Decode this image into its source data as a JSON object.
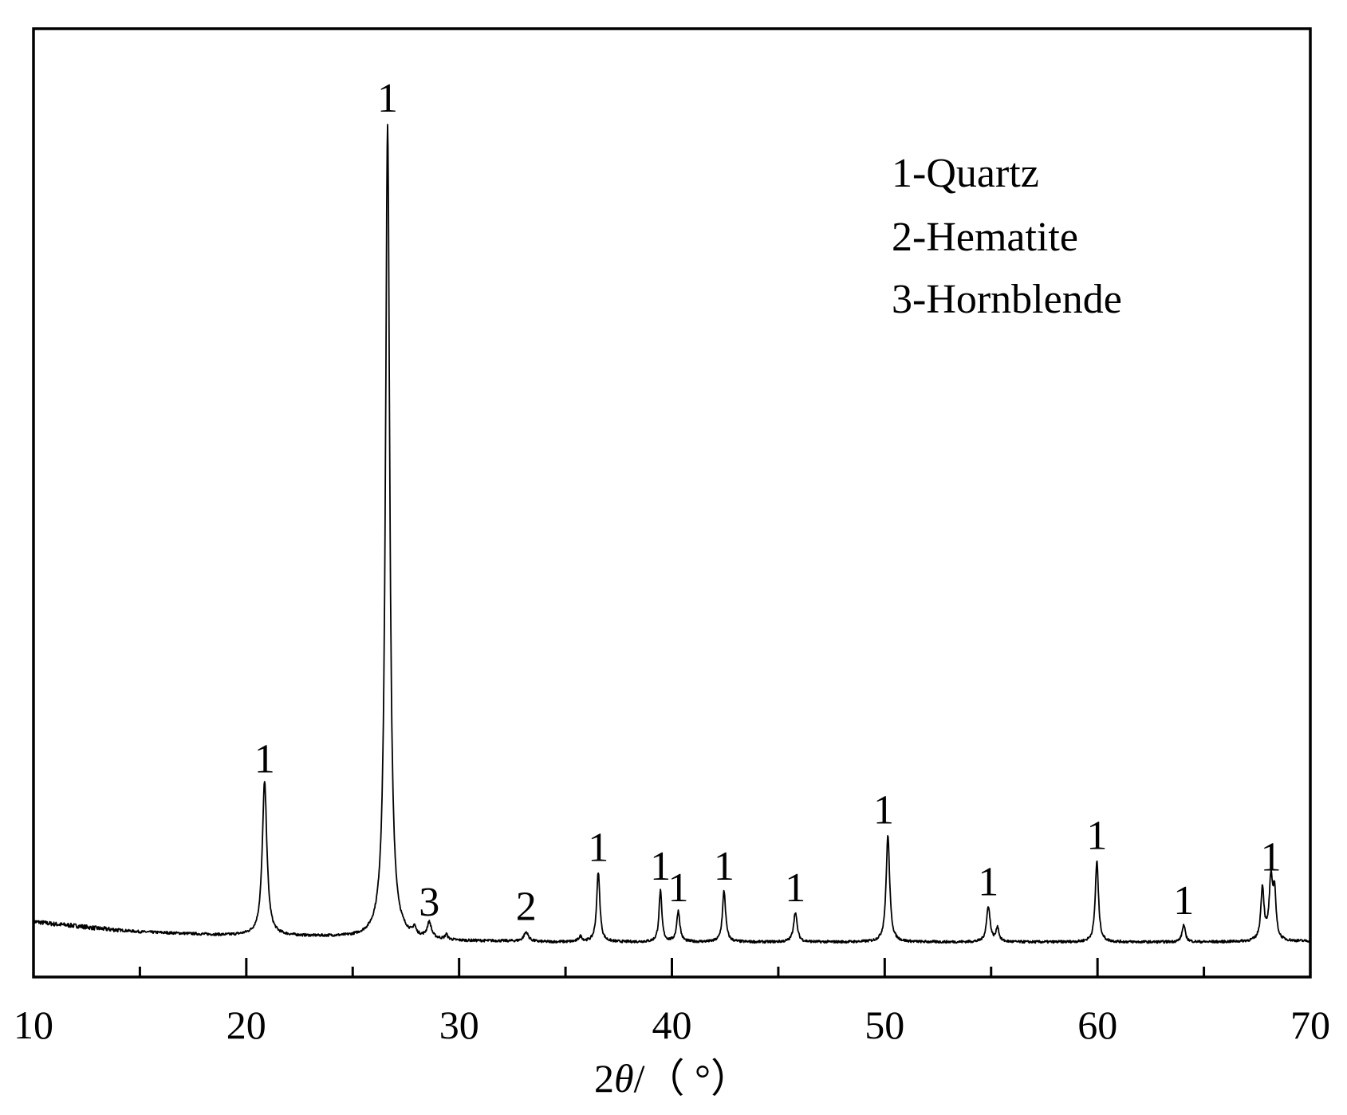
{
  "chart_data": {
    "type": "line",
    "title": "",
    "xlabel_prefix": "2",
    "xlabel_symbol": "θ",
    "xlabel_unit": "/（ °）",
    "ylabel": "",
    "xlim": [
      10,
      70
    ],
    "ylim": [
      0,
      1000
    ],
    "grid": false,
    "x_ticks": [
      10,
      20,
      30,
      40,
      50,
      60,
      70
    ],
    "x_minor_ticks": [
      15,
      25,
      35,
      45,
      55,
      65
    ],
    "legend_position": "top-right",
    "legend": [
      "1-Quartz",
      "2-Hematite",
      "3-Hornblende"
    ],
    "baseline": [
      [
        10,
        50
      ],
      [
        11,
        47
      ],
      [
        12,
        45
      ],
      [
        13,
        42
      ],
      [
        14,
        40
      ],
      [
        15,
        38
      ],
      [
        16,
        37
      ],
      [
        17,
        36
      ],
      [
        18,
        35
      ],
      [
        19,
        34
      ],
      [
        20,
        34
      ],
      [
        22,
        33
      ],
      [
        24,
        32
      ],
      [
        25,
        31
      ],
      [
        28,
        29
      ],
      [
        30,
        27
      ],
      [
        32,
        27
      ],
      [
        34,
        26
      ],
      [
        36,
        26
      ],
      [
        38,
        26
      ],
      [
        40,
        26
      ],
      [
        45,
        26
      ],
      [
        50,
        26
      ],
      [
        55,
        26
      ],
      [
        60,
        26
      ],
      [
        65,
        26
      ],
      [
        70,
        27
      ]
    ],
    "peaks": [
      {
        "x": 20.86,
        "height": 180,
        "width": 0.13
      },
      {
        "x": 26.64,
        "height": 955,
        "width": 0.12
      },
      {
        "x": 27.9,
        "height": 9,
        "width": 0.08
      },
      {
        "x": 28.6,
        "height": 18,
        "width": 0.12
      },
      {
        "x": 29.4,
        "height": 6,
        "width": 0.07
      },
      {
        "x": 33.15,
        "height": 11,
        "width": 0.13
      },
      {
        "x": 35.7,
        "height": 6,
        "width": 0.1
      },
      {
        "x": 36.54,
        "height": 82,
        "width": 0.09
      },
      {
        "x": 39.46,
        "height": 60,
        "width": 0.08
      },
      {
        "x": 40.3,
        "height": 36,
        "width": 0.09
      },
      {
        "x": 42.45,
        "height": 60,
        "width": 0.09
      },
      {
        "x": 45.8,
        "height": 35,
        "width": 0.1
      },
      {
        "x": 50.15,
        "height": 125,
        "width": 0.1
      },
      {
        "x": 54.87,
        "height": 42,
        "width": 0.1
      },
      {
        "x": 55.3,
        "height": 17,
        "width": 0.08
      },
      {
        "x": 59.97,
        "height": 95,
        "width": 0.09
      },
      {
        "x": 64.05,
        "height": 20,
        "width": 0.09
      },
      {
        "x": 67.75,
        "height": 62,
        "width": 0.09
      },
      {
        "x": 68.15,
        "height": 70,
        "width": 0.1
      },
      {
        "x": 68.32,
        "height": 52,
        "width": 0.08
      }
    ],
    "peak_labels": [
      {
        "text": "1",
        "x": 20.86,
        "y": 225
      },
      {
        "text": "1",
        "x": 26.64,
        "y": 1000
      },
      {
        "text": "3",
        "x": 28.6,
        "y": 57
      },
      {
        "text": "2",
        "x": 33.15,
        "y": 52
      },
      {
        "text": "1",
        "x": 36.54,
        "y": 121
      },
      {
        "text": "1",
        "x": 39.46,
        "y": 99
      },
      {
        "text": "1",
        "x": 40.3,
        "y": 74
      },
      {
        "text": "1",
        "x": 42.45,
        "y": 99
      },
      {
        "text": "1",
        "x": 45.8,
        "y": 74
      },
      {
        "text": "1",
        "x": 49.95,
        "y": 165
      },
      {
        "text": "1",
        "x": 54.87,
        "y": 81
      },
      {
        "text": "1",
        "x": 59.97,
        "y": 135
      },
      {
        "text": "1",
        "x": 64.05,
        "y": 59
      },
      {
        "text": "1",
        "x": 68.15,
        "y": 110
      }
    ]
  }
}
